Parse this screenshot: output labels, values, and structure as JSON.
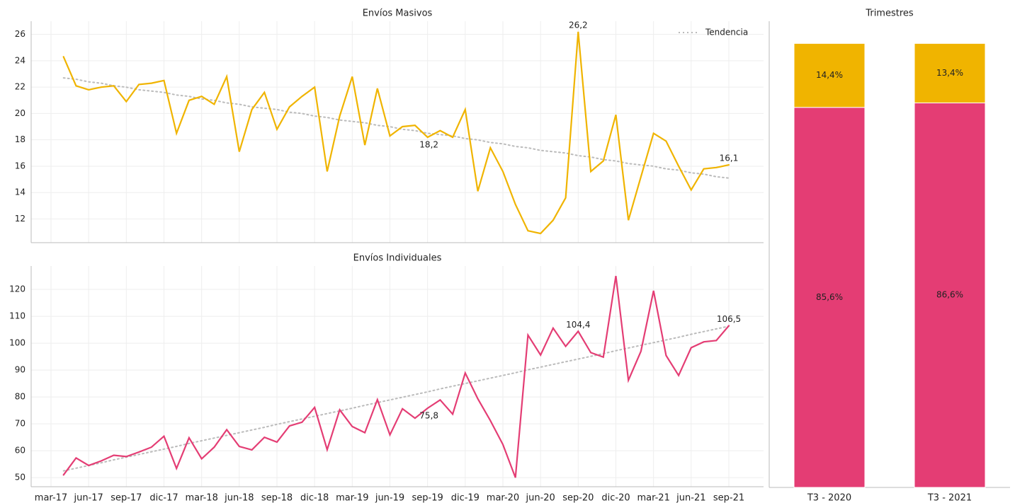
{
  "chart_data": [
    {
      "type": "line",
      "title": "Envíos Masivos",
      "series": [
        {
          "name": null,
          "color": "#f0b400",
          "values": [
            null,
            24.3,
            22.1,
            21.8,
            22.0,
            22.1,
            20.9,
            22.2,
            22.3,
            22.5,
            18.5,
            21.0,
            21.3,
            20.7,
            22.8,
            17.1,
            20.3,
            21.6,
            18.8,
            20.5,
            21.3,
            22.0,
            15.6,
            19.8,
            22.8,
            17.6,
            21.9,
            18.3,
            19.0,
            19.1,
            18.2,
            18.7,
            18.2,
            20.3,
            14.1,
            17.4,
            15.6,
            13.1,
            11.1,
            10.9,
            11.9,
            13.6,
            26.2,
            15.6,
            16.4,
            19.9,
            11.9,
            15.2,
            18.5,
            17.9,
            16.0,
            14.2,
            15.8,
            15.9,
            16.1
          ],
          "value_labels": [
            null,
            null,
            null,
            null,
            null,
            null,
            null,
            null,
            null,
            null,
            null,
            null,
            null,
            null,
            null,
            null,
            null,
            null,
            null,
            null,
            null,
            null,
            null,
            null,
            null,
            null,
            null,
            null,
            null,
            null,
            "18,2",
            null,
            null,
            null,
            null,
            null,
            null,
            null,
            null,
            null,
            null,
            null,
            "26,2",
            null,
            null,
            null,
            null,
            null,
            null,
            null,
            null,
            null,
            null,
            null,
            "16,1"
          ]
        },
        {
          "name": "Tendencia",
          "color": "#bbbbbb",
          "dotted": true,
          "values": [
            null,
            22.7,
            22.6,
            22.4,
            22.3,
            22.1,
            22.0,
            21.8,
            21.7,
            21.6,
            21.4,
            21.3,
            21.1,
            21.0,
            20.8,
            20.7,
            20.5,
            20.4,
            20.3,
            20.1,
            20.0,
            19.8,
            19.7,
            19.5,
            19.4,
            19.3,
            19.1,
            19.0,
            18.8,
            18.7,
            18.5,
            18.4,
            18.3,
            18.1,
            18.0,
            17.8,
            17.7,
            17.5,
            17.4,
            17.2,
            17.1,
            17.0,
            16.8,
            16.7,
            16.5,
            16.4,
            16.2,
            16.1,
            16.0,
            15.8,
            15.7,
            15.5,
            15.4,
            15.2,
            15.1
          ]
        }
      ],
      "ylim": [
        10.2,
        27.0
      ],
      "yticks": [
        12,
        14,
        16,
        18,
        20,
        22,
        24,
        26
      ],
      "grid": true,
      "legend": "upper-right"
    },
    {
      "type": "line",
      "title": "Envíos Individuales",
      "categories": [
        "mar-17",
        null,
        null,
        "jun-17",
        null,
        null,
        "sep-17",
        null,
        null,
        "dic-17",
        null,
        null,
        "mar-18",
        null,
        null,
        "jun-18",
        null,
        null,
        "sep-18",
        null,
        null,
        "dic-18",
        null,
        null,
        "mar-19",
        null,
        null,
        "jun-19",
        null,
        null,
        "sep-19",
        null,
        null,
        "dic-19",
        null,
        null,
        "mar-20",
        null,
        null,
        "jun-20",
        null,
        null,
        "sep-20",
        null,
        null,
        "dic-20",
        null,
        null,
        "mar-21",
        null,
        null,
        "jun-21",
        null,
        null,
        "sep-21"
      ],
      "series": [
        {
          "name": null,
          "color": "#e43d74",
          "values": [
            null,
            51.0,
            57.3,
            54.5,
            56.2,
            58.3,
            57.8,
            59.5,
            61.3,
            65.4,
            53.4,
            64.8,
            57.0,
            61.3,
            67.8,
            61.6,
            60.3,
            65.0,
            63.2,
            69.2,
            70.6,
            76.1,
            60.4,
            75.2,
            69.0,
            66.7,
            79.0,
            65.9,
            75.6,
            72.1,
            75.8,
            78.9,
            73.6,
            88.9,
            79.3,
            71.2,
            62.3,
            50.0,
            103.0,
            95.6,
            105.6,
            98.8,
            104.4,
            96.5,
            94.8,
            125.0,
            86.2,
            97.0,
            119.5,
            95.4,
            88.0,
            98.3,
            100.5,
            101.0,
            106.5
          ],
          "value_labels": [
            null,
            null,
            null,
            null,
            null,
            null,
            null,
            null,
            null,
            null,
            null,
            null,
            null,
            null,
            null,
            null,
            null,
            null,
            null,
            null,
            null,
            null,
            null,
            null,
            null,
            null,
            null,
            null,
            null,
            null,
            "75,8",
            null,
            null,
            null,
            null,
            null,
            null,
            null,
            null,
            null,
            null,
            null,
            "104,4",
            null,
            null,
            null,
            null,
            null,
            null,
            null,
            null,
            null,
            null,
            null,
            "106,5"
          ]
        },
        {
          "name": null,
          "color": "#bbbbbb",
          "dotted": true,
          "values": [
            null,
            52.5,
            53.5,
            54.5,
            55.5,
            56.6,
            57.6,
            58.6,
            59.6,
            60.6,
            61.6,
            62.7,
            63.7,
            64.7,
            65.7,
            66.7,
            67.7,
            68.7,
            69.8,
            70.8,
            71.8,
            72.8,
            73.8,
            74.8,
            75.8,
            76.9,
            77.9,
            78.9,
            79.9,
            80.9,
            81.9,
            83.0,
            84.0,
            85.0,
            86.0,
            87.0,
            88.0,
            89.0,
            90.1,
            91.1,
            92.1,
            93.1,
            94.1,
            95.1,
            96.1,
            97.2,
            98.2,
            99.2,
            100.2,
            101.2,
            102.2,
            103.3,
            104.3,
            105.3,
            106.3
          ]
        }
      ],
      "ylim": [
        46.6,
        128.7
      ],
      "yticks": [
        50,
        60,
        70,
        80,
        90,
        100,
        110,
        120
      ],
      "grid": true
    },
    {
      "type": "bar",
      "stacked": true,
      "title": "Trimestres",
      "categories": [
        "T3 - 2020",
        "T3 - 2021"
      ],
      "series": [
        {
          "name": null,
          "color": "#e43d74",
          "values": [
            85.6,
            86.6
          ],
          "value_labels": [
            "85,6%",
            "86,6%"
          ]
        },
        {
          "name": null,
          "color": "#f0b400",
          "values": [
            14.4,
            13.4
          ],
          "value_labels": [
            "14,4%",
            "13,4%"
          ]
        }
      ],
      "ylim": [
        0,
        105
      ]
    }
  ]
}
